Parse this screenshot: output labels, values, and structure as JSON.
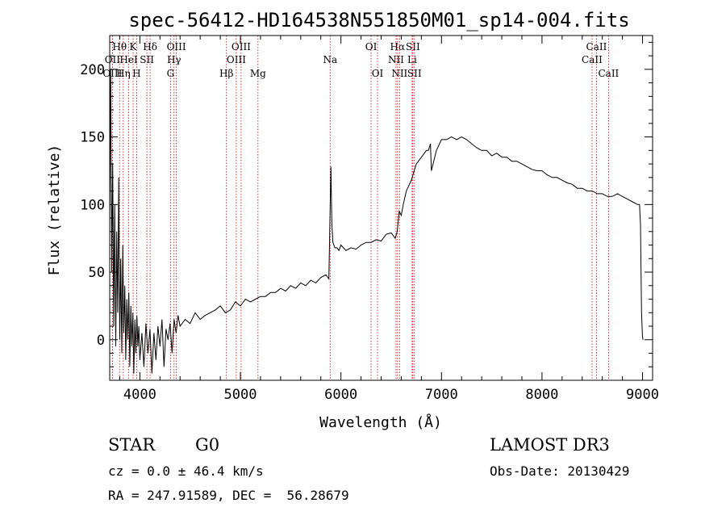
{
  "chart_data": {
    "type": "line",
    "title": "spec-56412-HD164538N551850M01_sp14-004.fits",
    "xlabel": "Wavelength (Å)",
    "ylabel": "Flux (relative)",
    "xlim": [
      3700,
      9100
    ],
    "ylim": [
      -30,
      225
    ],
    "xticks": [
      4000,
      5000,
      6000,
      7000,
      8000,
      9000
    ],
    "yticks": [
      0,
      50,
      100,
      150,
      200
    ],
    "grid": false,
    "line_color": "#000000",
    "marker_color": "#cc0000",
    "series": [
      {
        "values_x": [
          3700,
          3710,
          3720,
          3730,
          3740,
          3750,
          3760,
          3770,
          3780,
          3790,
          3800,
          3810,
          3820,
          3830,
          3840,
          3850,
          3860,
          3870,
          3880,
          3890,
          3900,
          3910,
          3920,
          3930,
          3940,
          3950,
          3960,
          3970,
          3980,
          3990,
          4000,
          4020,
          4040,
          4060,
          4080,
          4100,
          4120,
          4140,
          4160,
          4180,
          4200,
          4220,
          4240,
          4260,
          4280,
          4300,
          4320,
          4340,
          4360,
          4380,
          4400,
          4450,
          4500,
          4550,
          4600,
          4650,
          4700,
          4750,
          4800,
          4850,
          4900,
          4950,
          5000,
          5050,
          5100,
          5150,
          5200,
          5250,
          5300,
          5350,
          5400,
          5450,
          5500,
          5550,
          5600,
          5650,
          5700,
          5750,
          5800,
          5850,
          5880,
          5900,
          5910,
          5920,
          5930,
          5940,
          5960,
          5980,
          6000,
          6050,
          6100,
          6150,
          6200,
          6250,
          6300,
          6350,
          6400,
          6450,
          6500,
          6540,
          6560,
          6580,
          6600,
          6620,
          6650,
          6700,
          6750,
          6800,
          6850,
          6870,
          6890,
          6900,
          6950,
          7000,
          7050,
          7100,
          7150,
          7200,
          7250,
          7300,
          7350,
          7400,
          7450,
          7500,
          7550,
          7600,
          7650,
          7700,
          7750,
          7800,
          7850,
          7900,
          7950,
          8000,
          8050,
          8100,
          8150,
          8200,
          8250,
          8300,
          8350,
          8400,
          8450,
          8500,
          8550,
          8600,
          8650,
          8700,
          8750,
          8800,
          8850,
          8900,
          8950,
          8970,
          8980,
          8990,
          9000,
          9005
        ],
        "values_y": [
          90,
          200,
          50,
          130,
          10,
          100,
          -5,
          80,
          20,
          120,
          0,
          60,
          -10,
          70,
          5,
          40,
          -15,
          30,
          0,
          35,
          -20,
          25,
          -5,
          20,
          -25,
          15,
          -10,
          18,
          -5,
          10,
          -15,
          5,
          -20,
          12,
          -10,
          8,
          -25,
          5,
          -15,
          10,
          -5,
          15,
          -20,
          8,
          0,
          12,
          -10,
          15,
          5,
          18,
          10,
          15,
          12,
          20,
          15,
          18,
          20,
          22,
          25,
          20,
          22,
          28,
          25,
          30,
          28,
          30,
          32,
          32,
          35,
          35,
          38,
          36,
          40,
          38,
          42,
          40,
          44,
          42,
          46,
          48,
          45,
          128,
          85,
          72,
          70,
          68,
          68,
          66,
          70,
          66,
          68,
          67,
          70,
          72,
          72,
          74,
          73,
          78,
          79,
          75,
          80,
          95,
          92,
          100,
          110,
          118,
          130,
          135,
          140,
          140,
          145,
          125,
          140,
          148,
          148,
          150,
          148,
          150,
          148,
          145,
          142,
          140,
          140,
          136,
          138,
          135,
          135,
          132,
          132,
          130,
          128,
          126,
          125,
          125,
          122,
          120,
          120,
          118,
          116,
          115,
          112,
          112,
          110,
          110,
          108,
          108,
          106,
          106,
          108,
          106,
          104,
          102,
          100,
          100,
          85,
          20,
          2,
          0
        ]
      }
    ],
    "annotations": [
      {
        "label": "Hθ",
        "x": 3798,
        "row": 1
      },
      {
        "label": "K",
        "x": 3933,
        "row": 1
      },
      {
        "label": "Hδ",
        "x": 4102,
        "row": 1
      },
      {
        "label": "OIII",
        "x": 4363,
        "row": 1
      },
      {
        "label": "OIII",
        "x": 5007,
        "row": 1
      },
      {
        "label": "OI",
        "x": 6300,
        "row": 1
      },
      {
        "label": "Hα",
        "x": 6563,
        "row": 1
      },
      {
        "label": "SII",
        "x": 6716,
        "row": 1
      },
      {
        "label": "CaII",
        "x": 8542,
        "row": 1
      },
      {
        "label": "OII",
        "x": 3727,
        "row": 2
      },
      {
        "label": "HeI",
        "x": 3889,
        "row": 2
      },
      {
        "label": "SII",
        "x": 4070,
        "row": 2
      },
      {
        "label": "Hγ",
        "x": 4340,
        "row": 2
      },
      {
        "label": "OIII",
        "x": 4959,
        "row": 2
      },
      {
        "label": "Na",
        "x": 5893,
        "row": 2
      },
      {
        "label": "NII",
        "x": 6548,
        "row": 2
      },
      {
        "label": "Li",
        "x": 6708,
        "row": 2
      },
      {
        "label": "CaII",
        "x": 8498,
        "row": 2
      },
      {
        "label": "OIII",
        "x": 3727,
        "row": 3
      },
      {
        "label": "Hη",
        "x": 3835,
        "row": 3
      },
      {
        "label": "H",
        "x": 3968,
        "row": 3
      },
      {
        "label": "G",
        "x": 4305,
        "row": 3
      },
      {
        "label": "Hβ",
        "x": 4861,
        "row": 3
      },
      {
        "label": "Mg",
        "x": 5175,
        "row": 3
      },
      {
        "label": "OI",
        "x": 6364,
        "row": 3
      },
      {
        "label": "NII",
        "x": 6583,
        "row": 3
      },
      {
        "label": "SII",
        "x": 6731,
        "row": 3
      },
      {
        "label": "CaII",
        "x": 8662,
        "row": 3
      }
    ]
  },
  "info": {
    "object_type": "STAR",
    "subclass": "G0",
    "survey": "LAMOST DR3",
    "cz": "cz = 0.0 ± 46.4 km/s",
    "obs_date": "Obs-Date: 20130429",
    "coords": "RA = 247.91589, DEC =  56.28679"
  }
}
